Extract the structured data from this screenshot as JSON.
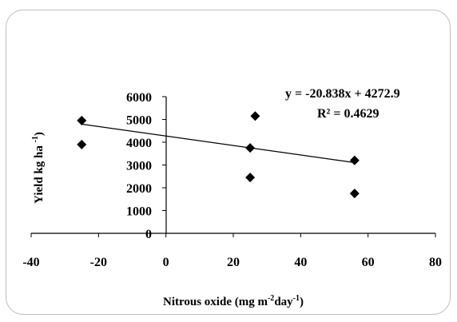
{
  "chart_data": {
    "type": "scatter",
    "xlabel": "Nitrous oxide (mg m-2day-1)",
    "ylabel": "Yield kg ha-1)",
    "xlim": [
      -40,
      80
    ],
    "ylim": [
      0,
      6000
    ],
    "x_ticks": [
      "-40",
      "-20",
      "0",
      "20",
      "40",
      "60",
      "80"
    ],
    "y_ticks": [
      "0",
      "1000",
      "2000",
      "3000",
      "4000",
      "5000",
      "6000"
    ],
    "grid": false,
    "legend": "none",
    "series": [
      {
        "points": [
          {
            "x": -25,
            "y": 4950
          },
          {
            "x": -25,
            "y": 3900
          },
          {
            "x": 25,
            "y": 3750
          },
          {
            "x": 25,
            "y": 2450
          },
          {
            "x": 26.5,
            "y": 5150
          },
          {
            "x": 56,
            "y": 3200
          },
          {
            "x": 56,
            "y": 1750
          }
        ],
        "color": "#000000"
      }
    ],
    "trendline": {
      "type": "linear",
      "slope": -20.838,
      "intercept": 4272.9,
      "x_range": [
        -25,
        56
      ],
      "equation": "y = -20.838x + 4272.9",
      "r_squared": "R² = 0.4629"
    }
  }
}
